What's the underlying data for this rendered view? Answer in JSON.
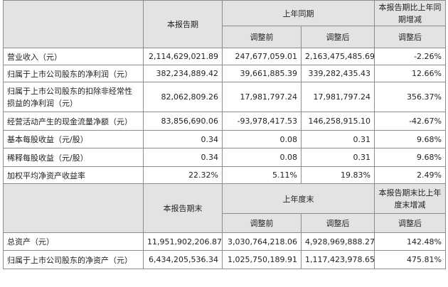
{
  "header1": {
    "col1": "本报告期",
    "group": "上年同期",
    "col4_line1": "本报告期比上年同",
    "col4_line2": "期增减",
    "sub_before": "调整前",
    "sub_after": "调整后",
    "sub_change": "调整后"
  },
  "rows1": [
    {
      "label": "营业收入（元）",
      "v1": "2,114,629,021.89",
      "v2": "247,677,059.01",
      "v3": "2,163,475,485.69",
      "v4": "-2.26%"
    },
    {
      "label": "归属于上市公司股东的净利润（元）",
      "v1": "382,234,889.42",
      "v2": "39,661,885.39",
      "v3": "339,282,435.43",
      "v4": "12.66%"
    },
    {
      "label_line1": "归属于上市公司股东的扣除非经常性",
      "label_line2": "损益的净利润（元）",
      "v1": "82,062,809.26",
      "v2": "17,981,797.24",
      "v3": "17,981,797.24",
      "v4": "356.37%"
    },
    {
      "label": "经营活动产生的现金流量净额（元）",
      "v1": "83,856,690.06",
      "v2": "-93,978,417.53",
      "v3": "146,258,915.10",
      "v4": "-42.67%"
    },
    {
      "label": "基本每股收益（元/股）",
      "v1": "0.34",
      "v2": "0.08",
      "v3": "0.31",
      "v4": "9.68%"
    },
    {
      "label": "稀释每股收益（元/股）",
      "v1": "0.34",
      "v2": "0.08",
      "v3": "0.31",
      "v4": "9.68%"
    },
    {
      "label": "加权平均净资产收益率",
      "v1": "22.32%",
      "v2": "5.11%",
      "v3": "19.83%",
      "v4": "2.49%"
    }
  ],
  "header2": {
    "col1": "本报告期末",
    "group": "上年度末",
    "col4_line1": "本报告期末比上年",
    "col4_line2": "度末增减",
    "sub_before": "调整前",
    "sub_after": "调整后",
    "sub_change": "调整后"
  },
  "rows2": [
    {
      "label": "总资产（元）",
      "v1": "11,951,902,206.87",
      "v2": "3,030,764,218.06",
      "v3": "4,928,969,888.27",
      "v4": "142.48%"
    },
    {
      "label": "归属于上市公司股东的净资产（元）",
      "v1": "6,434,205,536.34",
      "v2": "1,025,750,189.91",
      "v3": "1,117,423,978.65",
      "v4": "475.81%"
    }
  ]
}
